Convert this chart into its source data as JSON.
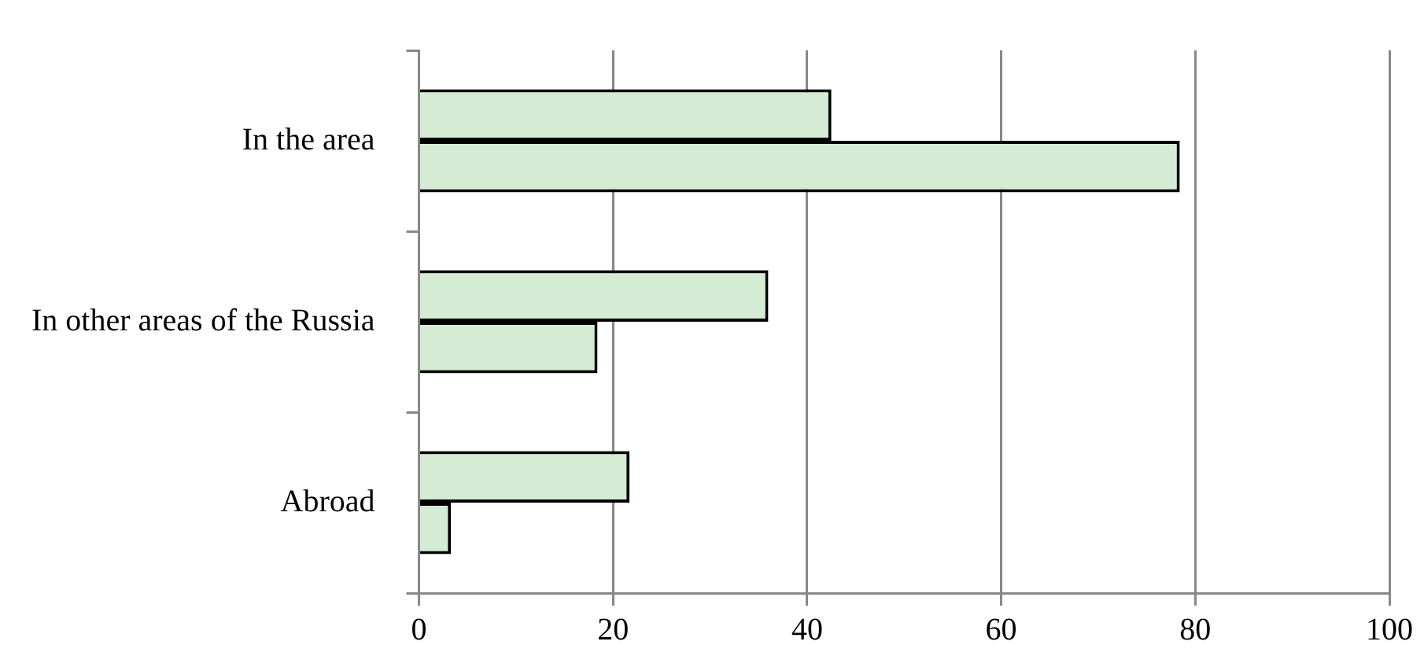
{
  "chart_data": {
    "type": "bar",
    "orientation": "horizontal",
    "categories": [
      "In the area",
      "In other areas of the Russia",
      "Abroad"
    ],
    "series": [
      {
        "color": "#d5ecd4",
        "values": [
          42.5,
          36,
          21.7
        ]
      },
      {
        "color": "#d5ecd4",
        "values": [
          78.4,
          18.4,
          3.3
        ]
      }
    ],
    "xlim": [
      0,
      100
    ],
    "xticks": [
      0,
      20,
      40,
      60,
      80,
      100
    ],
    "grid": "x",
    "legend": false
  }
}
